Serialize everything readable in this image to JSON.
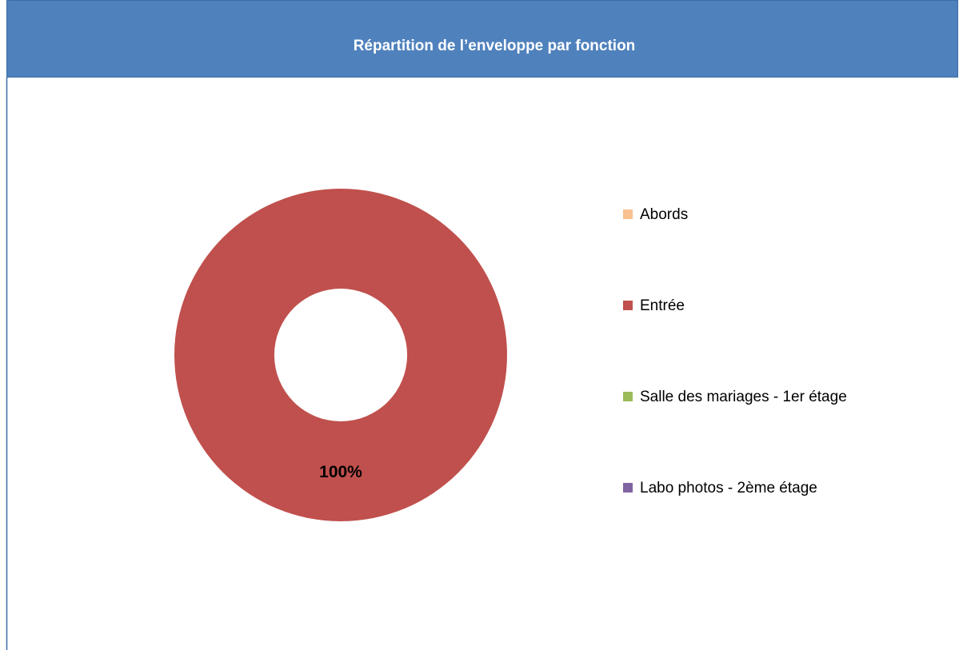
{
  "chart_data": {
    "type": "donut",
    "title": "Répartition de l’enveloppe par fonction",
    "categories": [
      "Abords",
      "Entrée",
      "Salle des mariages - 1er étage",
      "Labo photos - 2ème étage"
    ],
    "values": [
      0,
      100,
      0,
      0
    ],
    "value_labels": [
      null,
      "100%",
      null,
      null
    ],
    "colors": [
      "#fac090",
      "#c0504d",
      "#9bbb59",
      "#8064a2"
    ],
    "legend": "right"
  }
}
